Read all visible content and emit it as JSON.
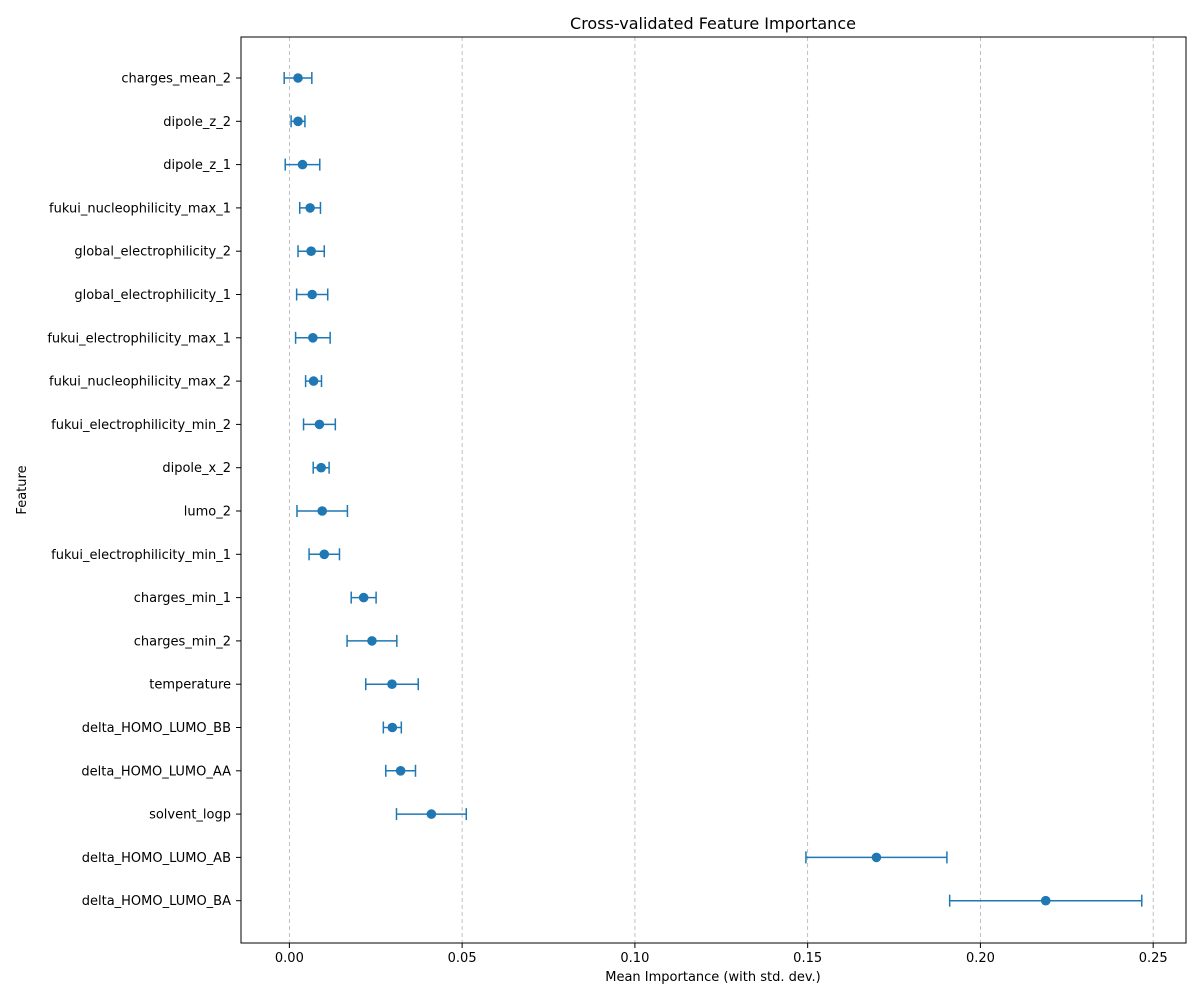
{
  "chart_data": {
    "type": "scatter",
    "title": "Cross-validated Feature Importance",
    "xlabel": "Mean Importance (with std. dev.)",
    "ylabel": "Feature",
    "xlim": [
      -0.014,
      0.2595
    ],
    "xticks": [
      0.0,
      0.05,
      0.1,
      0.15,
      0.2,
      0.25
    ],
    "xtick_labels": [
      "0.00",
      "0.05",
      "0.10",
      "0.15",
      "0.20",
      "0.25"
    ],
    "grid": "x-dashed",
    "color": "#1f77b4",
    "features": [
      "charges_mean_2",
      "dipole_z_2",
      "dipole_z_1",
      "fukui_nucleophilicity_max_1",
      "global_electrophilicity_2",
      "global_electrophilicity_1",
      "fukui_electrophilicity_max_1",
      "fukui_nucleophilicity_max_2",
      "fukui_electrophilicity_min_2",
      "dipole_x_2",
      "lumo_2",
      "fukui_electrophilicity_min_1",
      "charges_min_1",
      "charges_min_2",
      "temperature",
      "delta_HOMO_LUMO_BB",
      "delta_HOMO_LUMO_AA",
      "solvent_logp",
      "delta_HOMO_LUMO_AB",
      "delta_HOMO_LUMO_BA"
    ],
    "means": [
      0.0025,
      0.0025,
      0.0038,
      0.006,
      0.0063,
      0.0066,
      0.0068,
      0.007,
      0.0087,
      0.0092,
      0.0095,
      0.0101,
      0.0215,
      0.0239,
      0.0297,
      0.0298,
      0.0322,
      0.0411,
      0.1699,
      0.2189
    ],
    "stds": [
      0.004,
      0.002,
      0.005,
      0.003,
      0.0038,
      0.0045,
      0.005,
      0.0023,
      0.0046,
      0.0023,
      0.0073,
      0.0044,
      0.0036,
      0.0072,
      0.0076,
      0.0026,
      0.0043,
      0.0101,
      0.0204,
      0.0278
    ]
  }
}
